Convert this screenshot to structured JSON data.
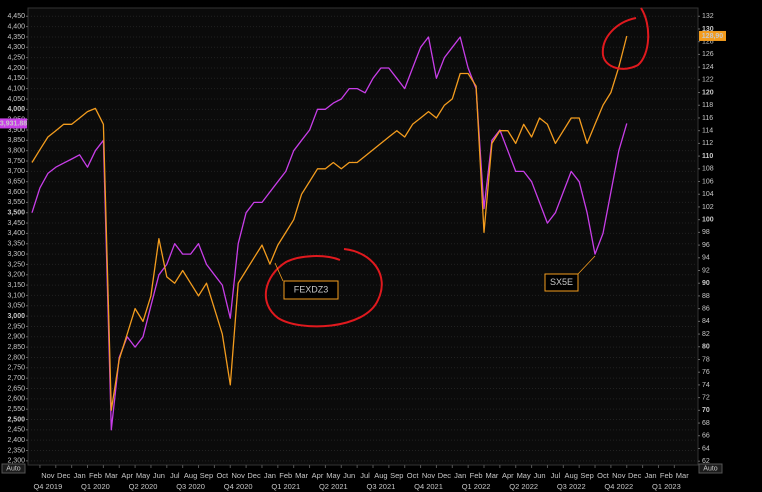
{
  "chart_data": {
    "type": "line",
    "categories": [
      null,
      null,
      "Nov",
      null,
      "Dec",
      null,
      "Jan",
      null,
      "Feb",
      null,
      "Mar",
      null,
      "Apr",
      null,
      "May",
      null,
      "Jun",
      null,
      "Jul",
      null,
      "Aug",
      null,
      "Sep",
      null,
      "Oct",
      null,
      "Nov",
      null,
      "Dec",
      null,
      "Jan",
      null,
      "Feb",
      null,
      "Mar",
      null,
      "Apr",
      null,
      "May",
      null,
      "Jun",
      null,
      "Jul",
      null,
      "Aug",
      null,
      "Sep",
      null,
      "Oct",
      null,
      "Nov",
      null,
      "Dec",
      null,
      "Jan",
      null,
      "Feb",
      null,
      "Mar",
      null,
      "Apr",
      null,
      "May",
      null,
      "Jun",
      null,
      "Jul",
      null,
      "Aug",
      null,
      "Sep",
      null,
      "Oct",
      null,
      "Nov",
      null,
      "Dec",
      null,
      "Jan",
      null,
      "Feb",
      null,
      "Mar"
    ],
    "quarters": [
      null,
      null,
      "Q4 2019",
      null,
      null,
      null,
      null,
      null,
      "Q1 2020",
      null,
      null,
      null,
      null,
      null,
      "Q2 2020",
      null,
      null,
      null,
      null,
      null,
      "Q3 2020",
      null,
      null,
      null,
      null,
      null,
      "Q4 2020",
      null,
      null,
      null,
      null,
      null,
      "Q1 2021",
      null,
      null,
      null,
      null,
      null,
      "Q2 2021",
      null,
      null,
      null,
      null,
      null,
      "Q3 2021",
      null,
      null,
      null,
      null,
      null,
      "Q4 2021",
      null,
      null,
      null,
      null,
      null,
      "Q1 2022",
      null,
      null,
      null,
      null,
      null,
      "Q2 2022",
      null,
      null,
      null,
      null,
      null,
      "Q3 2022",
      null,
      null,
      null,
      null,
      null,
      "Q4 2022",
      null,
      null,
      null,
      null,
      null,
      "Q1 2023",
      null,
      null
    ],
    "series": [
      {
        "name": "SX5E",
        "color": "#c83ee8",
        "axis": "y",
        "values": [
          3500,
          3620,
          3690,
          3720,
          3740,
          3760,
          3780,
          3720,
          3800,
          3850,
          2450,
          2800,
          2900,
          2850,
          2900,
          3050,
          3200,
          3250,
          3350,
          3300,
          3300,
          3350,
          3250,
          3200,
          3150,
          2990,
          3350,
          3500,
          3550,
          3550,
          3600,
          3650,
          3700,
          3800,
          3850,
          3900,
          4000,
          4000,
          4030,
          4050,
          4100,
          4100,
          4080,
          4150,
          4200,
          4200,
          4150,
          4100,
          4200,
          4300,
          4350,
          4150,
          4250,
          4300,
          4350,
          4200,
          4100,
          3520,
          3850,
          3900,
          3800,
          3700,
          3700,
          3650,
          3550,
          3450,
          3500,
          3600,
          3700,
          3650,
          3500,
          3300,
          3400,
          3600,
          3800,
          3931.88,
          null,
          null,
          null,
          null,
          null,
          null,
          null
        ],
        "value_labels": [
          null,
          null,
          null,
          null,
          null,
          null,
          null,
          null,
          null,
          null,
          null,
          null,
          null,
          null,
          null,
          null,
          null,
          null,
          null,
          null,
          null,
          null,
          null,
          null,
          null,
          null,
          null,
          null,
          null,
          null,
          null,
          null,
          null,
          null,
          null,
          null,
          null,
          null,
          null,
          null,
          null,
          null,
          null,
          null,
          null,
          null,
          null,
          null,
          null,
          null,
          null,
          null,
          null,
          null,
          null,
          null,
          null,
          null,
          null,
          null,
          null,
          null,
          null,
          null,
          null,
          null,
          null,
          null,
          null,
          null,
          null,
          null,
          null,
          null,
          null,
          "3,931.88",
          null,
          null,
          null,
          null,
          null,
          null,
          null
        ]
      },
      {
        "name": "FEXDZ3",
        "color": "#f39c1e",
        "axis": "y2",
        "values": [
          109,
          111,
          113,
          114,
          115,
          115,
          116,
          117,
          117.5,
          115,
          70,
          78,
          82,
          86,
          84,
          88,
          97,
          91,
          90,
          92,
          90,
          88,
          90,
          86,
          82,
          74,
          90,
          92,
          94,
          96,
          93,
          96,
          98,
          100,
          104,
          106,
          108,
          108,
          109,
          108,
          109,
          109,
          110,
          111,
          112,
          113,
          114,
          113,
          115,
          116,
          117,
          116,
          118,
          119,
          123,
          123,
          121,
          98,
          112,
          114,
          114,
          112,
          115,
          113,
          116,
          115,
          112,
          114,
          116,
          116,
          112,
          115,
          118,
          120,
          124,
          128.9,
          null,
          null,
          null,
          null,
          null,
          null,
          null
        ],
        "value_labels": [
          null,
          null,
          null,
          null,
          null,
          null,
          null,
          null,
          null,
          null,
          null,
          null,
          null,
          null,
          null,
          null,
          null,
          null,
          null,
          null,
          null,
          null,
          null,
          null,
          null,
          null,
          null,
          null,
          null,
          null,
          null,
          null,
          null,
          null,
          null,
          null,
          null,
          null,
          null,
          null,
          null,
          null,
          null,
          null,
          null,
          null,
          null,
          null,
          null,
          null,
          null,
          null,
          null,
          null,
          null,
          null,
          null,
          null,
          null,
          null,
          null,
          null,
          null,
          null,
          null,
          null,
          null,
          null,
          null,
          null,
          null,
          null,
          null,
          null,
          null,
          "128,90",
          null,
          null,
          null,
          null,
          null,
          null,
          null
        ]
      }
    ],
    "ylim": [
      2280,
      4490
    ],
    "yticks": [
      {
        "value": 2300,
        "label": "2,300"
      },
      {
        "value": 2350,
        "label": "2,350"
      },
      {
        "value": 2400,
        "label": "2,400"
      },
      {
        "value": 2450,
        "label": "2,450"
      },
      {
        "value": 2500,
        "label": "2,500"
      },
      {
        "value": 2550,
        "label": "2,550"
      },
      {
        "value": 2600,
        "label": "2,600"
      },
      {
        "value": 2650,
        "label": "2,650"
      },
      {
        "value": 2700,
        "label": "2,700"
      },
      {
        "value": 2750,
        "label": "2,750"
      },
      {
        "value": 2800,
        "label": "2,800"
      },
      {
        "value": 2850,
        "label": "2,850"
      },
      {
        "value": 2900,
        "label": "2,900"
      },
      {
        "value": 2950,
        "label": "2,950"
      },
      {
        "value": 3000,
        "label": "3,000"
      },
      {
        "value": 3050,
        "label": "3,050"
      },
      {
        "value": 3100,
        "label": "3,100"
      },
      {
        "value": 3150,
        "label": "3,150"
      },
      {
        "value": 3200,
        "label": "3,200"
      },
      {
        "value": 3250,
        "label": "3,250"
      },
      {
        "value": 3300,
        "label": "3,300"
      },
      {
        "value": 3350,
        "label": "3,350"
      },
      {
        "value": 3400,
        "label": "3,400"
      },
      {
        "value": 3450,
        "label": "3,450"
      },
      {
        "value": 3500,
        "label": "3,500"
      },
      {
        "value": 3550,
        "label": "3,550"
      },
      {
        "value": 3600,
        "label": "3,600"
      },
      {
        "value": 3650,
        "label": "3,650"
      },
      {
        "value": 3700,
        "label": "3,700"
      },
      {
        "value": 3750,
        "label": "3,750"
      },
      {
        "value": 3800,
        "label": "3,800"
      },
      {
        "value": 3850,
        "label": "3,850"
      },
      {
        "value": 3900,
        "label": "3,900"
      },
      {
        "value": 3950,
        "label": "3,950"
      },
      {
        "value": 4000,
        "label": "4,000"
      },
      {
        "value": 4050,
        "label": "4,050"
      },
      {
        "value": 4100,
        "label": "4,100"
      },
      {
        "value": 4150,
        "label": "4,150"
      },
      {
        "value": 4200,
        "label": "4,200"
      },
      {
        "value": 4250,
        "label": "4,250"
      },
      {
        "value": 4300,
        "label": "4,300"
      },
      {
        "value": 4350,
        "label": "4,350"
      },
      {
        "value": 4400,
        "label": "4,400"
      },
      {
        "value": 4450,
        "label": "4,450"
      }
    ],
    "y2lim": [
      61.4,
      133.3
    ],
    "y2ticks": [
      62,
      64,
      66,
      68,
      70,
      72,
      74,
      76,
      78,
      80,
      82,
      84,
      86,
      88,
      90,
      92,
      94,
      96,
      98,
      100,
      102,
      104,
      106,
      108,
      110,
      112,
      114,
      116,
      118,
      120,
      122,
      124,
      126,
      128,
      130,
      132
    ],
    "axis_buttons": [
      "Auto",
      "Auto"
    ],
    "grid": true
  }
}
